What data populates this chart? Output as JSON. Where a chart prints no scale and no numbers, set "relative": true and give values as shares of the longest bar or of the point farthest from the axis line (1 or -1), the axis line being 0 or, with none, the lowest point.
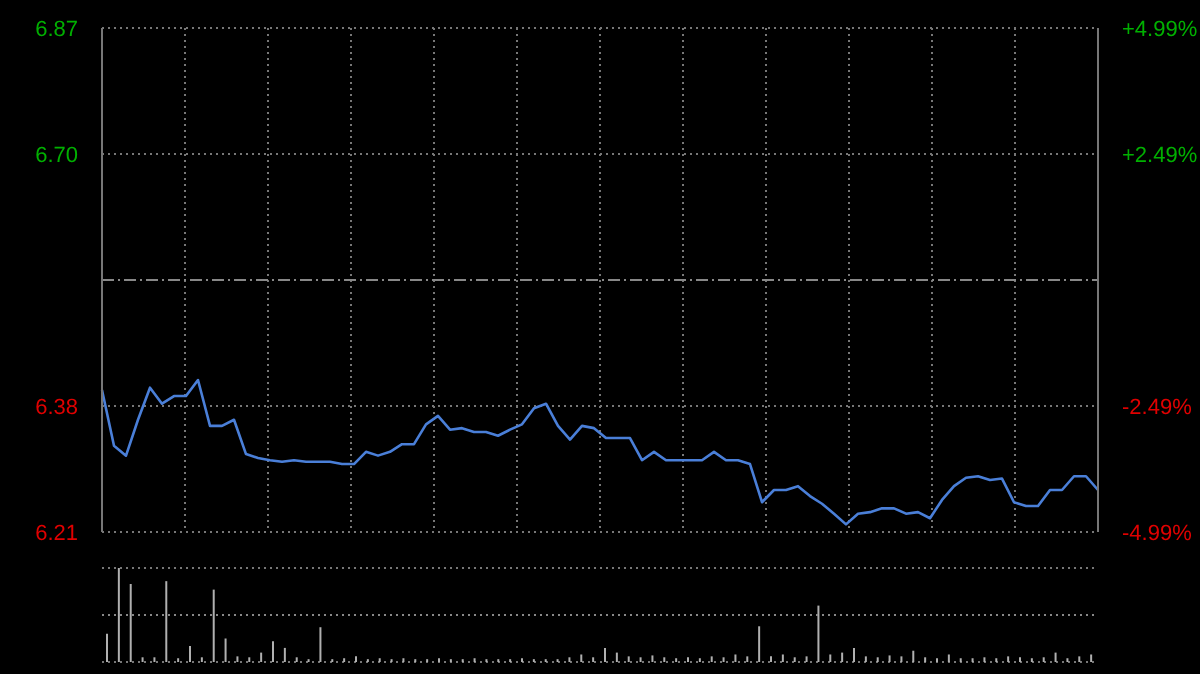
{
  "chart_data": [
    {
      "type": "line",
      "categories": [
        null,
        null,
        null,
        null,
        null,
        null,
        null,
        null,
        null,
        null,
        null,
        null,
        null,
        null,
        null,
        null,
        null,
        null,
        null,
        null,
        null,
        null,
        null,
        null,
        null,
        null,
        null,
        null,
        null,
        null,
        null,
        null,
        null,
        null,
        null,
        null,
        null,
        null,
        null,
        null,
        null,
        null,
        null,
        null,
        null,
        null,
        null,
        null,
        null,
        null,
        null,
        null,
        null,
        null,
        null,
        null,
        null,
        null,
        null,
        null,
        null,
        null,
        null,
        null,
        null,
        null,
        null,
        null,
        null,
        null,
        null,
        null,
        null,
        null,
        null,
        null,
        null,
        null,
        null,
        null,
        null,
        null,
        null,
        null
      ],
      "series": [
        {
          "color": "#4a7fd8",
          "values": [
            6.396,
            6.323,
            6.31,
            6.357,
            6.399,
            6.378,
            6.388,
            6.388,
            6.409,
            6.349,
            6.349,
            6.357,
            6.312,
            6.307,
            6.304,
            6.302,
            6.304,
            6.302,
            6.302,
            6.302,
            6.299,
            6.299,
            6.315,
            6.31,
            6.315,
            6.325,
            6.325,
            6.351,
            6.362,
            6.344,
            6.346,
            6.341,
            6.341,
            6.336,
            6.344,
            6.351,
            6.372,
            6.378,
            6.349,
            6.331,
            6.349,
            6.346,
            6.333,
            6.333,
            6.333,
            6.304,
            6.315,
            6.304,
            6.304,
            6.304,
            6.304,
            6.315,
            6.304,
            6.304,
            6.299,
            6.249,
            6.265,
            6.265,
            6.27,
            6.257,
            6.247,
            6.234,
            6.22,
            6.234,
            6.236,
            6.241,
            6.241,
            6.234,
            6.236,
            6.228,
            6.252,
            6.27,
            6.281,
            6.283,
            6.278,
            6.28,
            6.249,
            6.244,
            6.244,
            6.265,
            6.265,
            6.283,
            6.283,
            6.265
          ]
        }
      ],
      "ylim": [
        6.21,
        6.87
      ],
      "yticks": [
        {
          "value": 6.21,
          "label": "6.21"
        },
        {
          "value": 6.375,
          "label": "6.38"
        },
        {
          "value": 6.705,
          "label": "6.70"
        },
        {
          "value": 6.87,
          "label": "6.87"
        }
      ],
      "y2lim": [
        -4.99,
        4.99
      ],
      "y2ticks": [
        {
          "value": -4.99,
          "label": "-4.99%"
        },
        {
          "value": -2.49,
          "label": "-2.49%"
        },
        {
          "value": 2.49,
          "label": "+2.49%"
        },
        {
          "value": 4.99,
          "label": "+4.99%"
        }
      ],
      "ref_lines": [
        {
          "axis": "y",
          "value": 6.54,
          "label": null,
          "color": "#888888",
          "line_style": "dashed"
        }
      ],
      "grid": true
    },
    {
      "type": "bar",
      "relative": true,
      "categories": [
        null,
        null,
        null,
        null,
        null,
        null,
        null,
        null,
        null,
        null,
        null,
        null,
        null,
        null,
        null,
        null,
        null,
        null,
        null,
        null,
        null,
        null,
        null,
        null,
        null,
        null,
        null,
        null,
        null,
        null,
        null,
        null,
        null,
        null,
        null,
        null,
        null,
        null,
        null,
        null,
        null,
        null,
        null,
        null,
        null,
        null,
        null,
        null,
        null,
        null,
        null,
        null,
        null,
        null,
        null,
        null,
        null,
        null,
        null,
        null,
        null,
        null,
        null,
        null,
        null,
        null,
        null,
        null,
        null,
        null,
        null,
        null,
        null,
        null,
        null,
        null,
        null,
        null,
        null,
        null,
        null,
        null,
        null,
        null
      ],
      "series": [
        {
          "color": "#b0b0b0",
          "values": [
            0.3,
            1,
            0.83,
            0.05,
            0.05,
            0.86,
            0.04,
            0.17,
            0.05,
            0.77,
            0.25,
            0.06,
            0.05,
            0.1,
            0.22,
            0.15,
            0.05,
            0.03,
            0.37,
            0.03,
            0.04,
            0.06,
            0.03,
            0.04,
            0.03,
            0.04,
            0.03,
            0.03,
            0.04,
            0.03,
            0.03,
            0.04,
            0.03,
            0.03,
            0.03,
            0.04,
            0.03,
            0.03,
            0.03,
            0.05,
            0.08,
            0.05,
            0.15,
            0.1,
            0.06,
            0.05,
            0.07,
            0.05,
            0.04,
            0.05,
            0.04,
            0.06,
            0.05,
            0.08,
            0.06,
            0.38,
            0.06,
            0.08,
            0.05,
            0.06,
            0.6,
            0.08,
            0.1,
            0.15,
            0.06,
            0.05,
            0.07,
            0.06,
            0.12,
            0.05,
            0.04,
            0.08,
            0.04,
            0.04,
            0.05,
            0.04,
            0.06,
            0.05,
            0.04,
            0.05,
            0.1,
            0.04,
            0.06,
            0.08
          ]
        }
      ],
      "ref_lines": [
        {
          "axis": "y",
          "value": 0.5,
          "label": null,
          "color": "#888888",
          "line_style": "dotted"
        }
      ],
      "grid": true
    }
  ]
}
